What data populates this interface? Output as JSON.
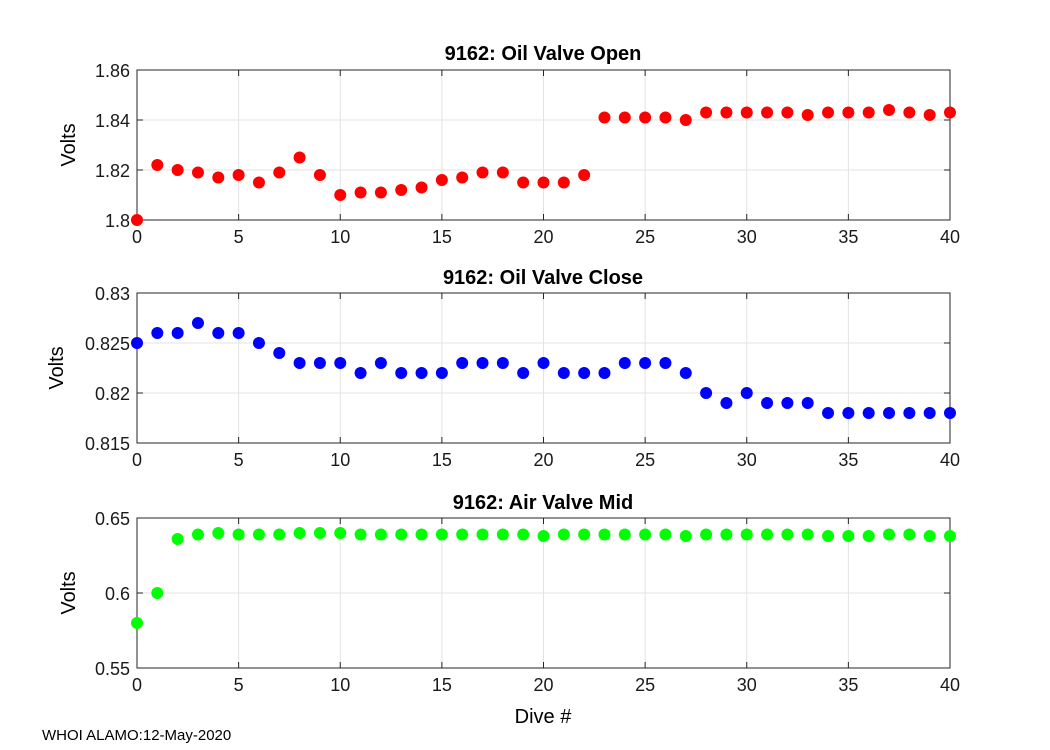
{
  "footer": "WHOI ALAMO:12-May-2020",
  "chart_data": [
    {
      "type": "scatter",
      "title": "9162: Oil Valve Open",
      "xlabel": "",
      "ylabel": "Volts",
      "xlim": [
        0,
        40
      ],
      "ylim": [
        1.8,
        1.86
      ],
      "xticks": [
        "0",
        "5",
        "10",
        "15",
        "20",
        "25",
        "30",
        "35",
        "40"
      ],
      "yticks": [
        "1.8",
        "1.82",
        "1.84",
        "1.86"
      ],
      "color": "#ff0000",
      "series": [
        {
          "name": "Oil Valve Open",
          "x": [
            0,
            1,
            2,
            3,
            4,
            5,
            6,
            7,
            8,
            9,
            10,
            11,
            12,
            13,
            14,
            15,
            16,
            17,
            18,
            19,
            20,
            21,
            22,
            23,
            24,
            25,
            26,
            27,
            28,
            29,
            30,
            31,
            32,
            33,
            34,
            35,
            36,
            37,
            38,
            39,
            40
          ],
          "values": [
            1.8,
            1.822,
            1.82,
            1.819,
            1.817,
            1.818,
            1.815,
            1.819,
            1.825,
            1.818,
            1.81,
            1.811,
            1.811,
            1.812,
            1.813,
            1.816,
            1.817,
            1.819,
            1.819,
            1.815,
            1.815,
            1.815,
            1.818,
            1.841,
            1.841,
            1.841,
            1.841,
            1.84,
            1.843,
            1.843,
            1.843,
            1.843,
            1.843,
            1.842,
            1.843,
            1.843,
            1.843,
            1.844,
            1.843,
            1.842,
            1.843
          ]
        }
      ]
    },
    {
      "type": "scatter",
      "title": "9162: Oil Valve Close",
      "xlabel": "",
      "ylabel": "Volts",
      "xlim": [
        0,
        40
      ],
      "ylim": [
        0.815,
        0.83
      ],
      "xticks": [
        "0",
        "5",
        "10",
        "15",
        "20",
        "25",
        "30",
        "35",
        "40"
      ],
      "yticks": [
        "0.815",
        "0.82",
        "0.825",
        "0.83"
      ],
      "color": "#0000ff",
      "series": [
        {
          "name": "Oil Valve Close",
          "x": [
            0,
            1,
            2,
            3,
            4,
            5,
            6,
            7,
            8,
            9,
            10,
            11,
            12,
            13,
            14,
            15,
            16,
            17,
            18,
            19,
            20,
            21,
            22,
            23,
            24,
            25,
            26,
            27,
            28,
            29,
            30,
            31,
            32,
            33,
            34,
            35,
            36,
            37,
            38,
            39,
            40
          ],
          "values": [
            0.825,
            0.826,
            0.826,
            0.827,
            0.826,
            0.826,
            0.825,
            0.824,
            0.823,
            0.823,
            0.823,
            0.822,
            0.823,
            0.822,
            0.822,
            0.822,
            0.823,
            0.823,
            0.823,
            0.822,
            0.823,
            0.822,
            0.822,
            0.822,
            0.823,
            0.823,
            0.823,
            0.822,
            0.82,
            0.819,
            0.82,
            0.819,
            0.819,
            0.819,
            0.818,
            0.818,
            0.818,
            0.818,
            0.818,
            0.818,
            0.818
          ]
        }
      ]
    },
    {
      "type": "scatter",
      "title": "9162: Air Valve Mid",
      "xlabel": "Dive #",
      "ylabel": "Volts",
      "xlim": [
        0,
        40
      ],
      "ylim": [
        0.55,
        0.65
      ],
      "xticks": [
        "0",
        "5",
        "10",
        "15",
        "20",
        "25",
        "30",
        "35",
        "40"
      ],
      "yticks": [
        "0.55",
        "0.6",
        "0.65"
      ],
      "color": "#00ff00",
      "series": [
        {
          "name": "Air Valve Mid",
          "x": [
            0,
            1,
            2,
            3,
            4,
            5,
            6,
            7,
            8,
            9,
            10,
            11,
            12,
            13,
            14,
            15,
            16,
            17,
            18,
            19,
            20,
            21,
            22,
            23,
            24,
            25,
            26,
            27,
            28,
            29,
            30,
            31,
            32,
            33,
            34,
            35,
            36,
            37,
            38,
            39,
            40
          ],
          "values": [
            0.58,
            0.6,
            0.636,
            0.639,
            0.64,
            0.639,
            0.639,
            0.639,
            0.64,
            0.64,
            0.64,
            0.639,
            0.639,
            0.639,
            0.639,
            0.639,
            0.639,
            0.639,
            0.639,
            0.639,
            0.638,
            0.639,
            0.639,
            0.639,
            0.639,
            0.639,
            0.639,
            0.638,
            0.639,
            0.639,
            0.639,
            0.639,
            0.639,
            0.639,
            0.638,
            0.638,
            0.638,
            0.639,
            0.639,
            0.638,
            0.638
          ]
        }
      ]
    }
  ]
}
